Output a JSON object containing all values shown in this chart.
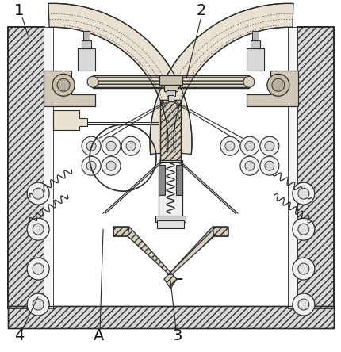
{
  "bg_color": "#ffffff",
  "line_color": "#2a2a2a",
  "wall_fc": "#d8d8d8",
  "light_fc": "#f0f0f0",
  "mid_fc": "#e0e0e0",
  "dark_fc": "#b0b0b0"
}
